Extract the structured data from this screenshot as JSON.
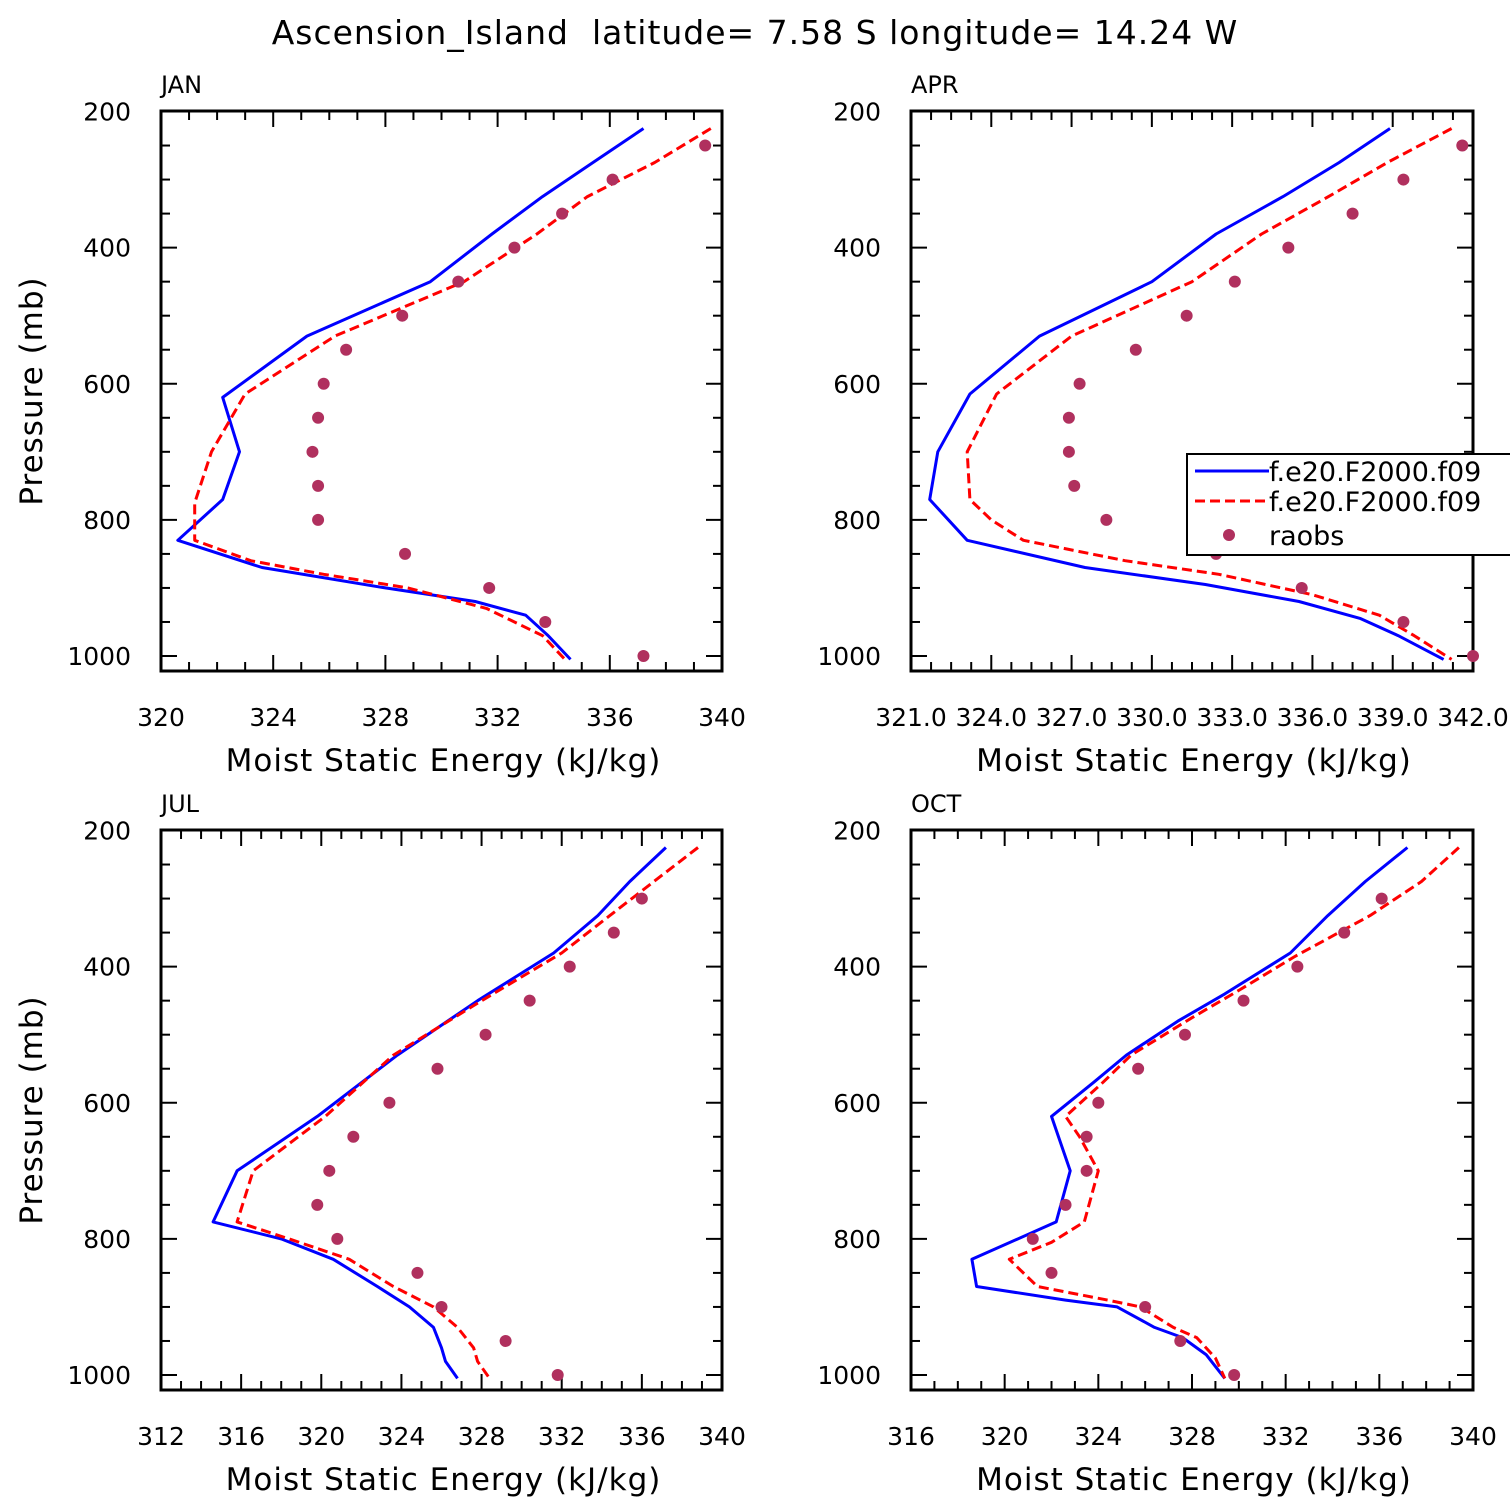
{
  "title": "Ascension_Island  latitude= 7.58 S longitude= 14.24 W",
  "colors": {
    "model1": "#0000ff",
    "model2": "#ff0000",
    "raobs": "#b0305e"
  },
  "legend": {
    "model1": "f.e20.F2000.f09",
    "model2": "f.e20.F2000.f09",
    "obs": "raobs"
  },
  "chart_data": [
    {
      "type": "line",
      "panel": "JAN",
      "xlabel": "Moist Static Energy (kJ/kg)",
      "ylabel": "Pressure (mb)",
      "xlim": [
        320,
        340
      ],
      "xticks": [
        320,
        324,
        328,
        332,
        336,
        340
      ],
      "xtick_labels": [
        "320",
        "324",
        "328",
        "332",
        "336",
        "340"
      ],
      "ylim": [
        1000,
        200
      ],
      "yticks": [
        200,
        400,
        600,
        800,
        1000
      ],
      "series": [
        {
          "name": "f.e20.F2000.f09 (1)",
          "style": "solid",
          "points": [
            [
              337.2,
              225
            ],
            [
              335.4,
              275
            ],
            [
              333.6,
              325
            ],
            [
              331.8,
              380
            ],
            [
              329.6,
              450
            ],
            [
              325.2,
              530
            ],
            [
              322.2,
              620
            ],
            [
              322.8,
              700
            ],
            [
              322.2,
              770
            ],
            [
              320.6,
              830
            ],
            [
              323.6,
              870
            ],
            [
              328.0,
              900
            ],
            [
              331.2,
              920
            ],
            [
              333.0,
              940
            ],
            [
              333.8,
              970
            ],
            [
              334.6,
              1005
            ]
          ]
        },
        {
          "name": "f.e20.F2000.f09 (2)",
          "style": "dashed",
          "points": [
            [
              339.6,
              225
            ],
            [
              337.6,
              275
            ],
            [
              335.2,
              325
            ],
            [
              333.4,
              380
            ],
            [
              330.8,
              450
            ],
            [
              326.2,
              530
            ],
            [
              323.0,
              615
            ],
            [
              321.8,
              700
            ],
            [
              321.2,
              775
            ],
            [
              321.2,
              830
            ],
            [
              323.2,
              860
            ],
            [
              325.8,
              880
            ],
            [
              328.8,
              900
            ],
            [
              331.6,
              930
            ],
            [
              333.6,
              970
            ],
            [
              334.4,
              1005
            ]
          ]
        }
      ],
      "obs": [
        [
          339.4,
          250
        ],
        [
          336.1,
          300
        ],
        [
          334.3,
          350
        ],
        [
          332.6,
          400
        ],
        [
          330.6,
          450
        ],
        [
          328.6,
          500
        ],
        [
          326.6,
          550
        ],
        [
          325.8,
          600
        ],
        [
          325.6,
          650
        ],
        [
          325.4,
          700
        ],
        [
          325.6,
          750
        ],
        [
          325.6,
          800
        ],
        [
          328.7,
          850
        ],
        [
          331.7,
          900
        ],
        [
          333.7,
          950
        ],
        [
          337.2,
          1000
        ]
      ]
    },
    {
      "type": "line",
      "panel": "APR",
      "xlabel": "Moist Static Energy (kJ/kg)",
      "ylabel": "",
      "xlim": [
        321,
        342
      ],
      "xticks": [
        321,
        324,
        327,
        330,
        333,
        336,
        339,
        342
      ],
      "xtick_labels": [
        "321.0",
        "324.0",
        "327.0",
        "330.0",
        "333.0",
        "336.0",
        "339.0",
        "342.0"
      ],
      "ylim": [
        1000,
        200
      ],
      "yticks": [
        200,
        400,
        600,
        800,
        1000
      ],
      "series": [
        {
          "name": "f.e20.F2000.f09 (1)",
          "style": "solid",
          "points": [
            [
              338.9,
              225
            ],
            [
              337.0,
              275
            ],
            [
              334.9,
              325
            ],
            [
              332.4,
              380
            ],
            [
              330.0,
              450
            ],
            [
              325.8,
              530
            ],
            [
              323.2,
              615
            ],
            [
              322.0,
              700
            ],
            [
              321.7,
              770
            ],
            [
              323.1,
              830
            ],
            [
              327.5,
              870
            ],
            [
              332.0,
              895
            ],
            [
              335.5,
              920
            ],
            [
              337.8,
              945
            ],
            [
              339.2,
              970
            ],
            [
              340.9,
              1005
            ]
          ]
        },
        {
          "name": "f.e20.F2000.f09 (2)",
          "style": "dashed",
          "points": [
            [
              341.2,
              225
            ],
            [
              338.8,
              275
            ],
            [
              336.6,
              325
            ],
            [
              334.1,
              380
            ],
            [
              331.5,
              450
            ],
            [
              327.0,
              530
            ],
            [
              324.2,
              615
            ],
            [
              323.1,
              700
            ],
            [
              323.2,
              770
            ],
            [
              324.0,
              800
            ],
            [
              325.2,
              830
            ],
            [
              329.0,
              860
            ],
            [
              332.5,
              880
            ],
            [
              336.0,
              910
            ],
            [
              338.5,
              940
            ],
            [
              339.8,
              970
            ],
            [
              341.2,
              1005
            ]
          ]
        }
      ],
      "obs": [
        [
          341.6,
          250
        ],
        [
          339.4,
          300
        ],
        [
          337.5,
          350
        ],
        [
          335.1,
          400
        ],
        [
          333.1,
          450
        ],
        [
          331.3,
          500
        ],
        [
          329.4,
          550
        ],
        [
          327.3,
          600
        ],
        [
          326.9,
          650
        ],
        [
          326.9,
          700
        ],
        [
          327.1,
          750
        ],
        [
          328.3,
          800
        ],
        [
          332.4,
          850
        ],
        [
          335.6,
          900
        ],
        [
          339.4,
          950
        ],
        [
          342.0,
          1000
        ]
      ]
    },
    {
      "type": "line",
      "panel": "JUL",
      "xlabel": "Moist Static Energy (kJ/kg)",
      "ylabel": "Pressure (mb)",
      "xlim": [
        312,
        340
      ],
      "xticks": [
        312,
        316,
        320,
        324,
        328,
        332,
        336,
        340
      ],
      "xtick_labels": [
        "312",
        "316",
        "320",
        "324",
        "328",
        "332",
        "336",
        "340"
      ],
      "ylim": [
        1000,
        200
      ],
      "yticks": [
        200,
        400,
        600,
        800,
        1000
      ],
      "series": [
        {
          "name": "f.e20.F2000.f09 (1)",
          "style": "solid",
          "points": [
            [
              337.2,
              225
            ],
            [
              335.4,
              275
            ],
            [
              333.8,
              325
            ],
            [
              331.6,
              380
            ],
            [
              327.8,
              450
            ],
            [
              323.8,
              530
            ],
            [
              319.8,
              620
            ],
            [
              315.8,
              700
            ],
            [
              314.6,
              775
            ],
            [
              318.0,
              800
            ],
            [
              320.6,
              830
            ],
            [
              322.8,
              870
            ],
            [
              324.4,
              900
            ],
            [
              325.6,
              930
            ],
            [
              326.0,
              960
            ],
            [
              326.2,
              980
            ],
            [
              326.8,
              1005
            ]
          ]
        },
        {
          "name": "f.e20.F2000.f09 (2)",
          "style": "dashed",
          "points": [
            [
              338.8,
              225
            ],
            [
              336.6,
              275
            ],
            [
              334.4,
              325
            ],
            [
              332.0,
              380
            ],
            [
              328.0,
              450
            ],
            [
              323.6,
              530
            ],
            [
              320.2,
              620
            ],
            [
              316.6,
              700
            ],
            [
              315.8,
              775
            ],
            [
              318.4,
              800
            ],
            [
              321.4,
              830
            ],
            [
              323.6,
              870
            ],
            [
              325.6,
              900
            ],
            [
              326.8,
              930
            ],
            [
              327.6,
              960
            ],
            [
              327.8,
              980
            ],
            [
              328.4,
              1005
            ]
          ]
        }
      ],
      "obs": [
        [
          336.0,
          300
        ],
        [
          334.6,
          350
        ],
        [
          332.4,
          400
        ],
        [
          330.4,
          450
        ],
        [
          328.2,
          500
        ],
        [
          325.8,
          550
        ],
        [
          323.4,
          600
        ],
        [
          321.6,
          650
        ],
        [
          320.4,
          700
        ],
        [
          319.8,
          750
        ],
        [
          320.8,
          800
        ],
        [
          324.8,
          850
        ],
        [
          326.0,
          900
        ],
        [
          329.2,
          950
        ],
        [
          331.8,
          1000
        ]
      ]
    },
    {
      "type": "line",
      "panel": "OCT",
      "xlabel": "Moist Static Energy (kJ/kg)",
      "ylabel": "",
      "xlim": [
        316,
        340
      ],
      "xticks": [
        316,
        320,
        324,
        328,
        332,
        336,
        340
      ],
      "xtick_labels": [
        "316",
        "320",
        "324",
        "328",
        "332",
        "336",
        "340"
      ],
      "ylim": [
        1000,
        200
      ],
      "yticks": [
        200,
        400,
        600,
        800,
        1000
      ],
      "series": [
        {
          "name": "f.e20.F2000.f09 (1)",
          "style": "solid",
          "points": [
            [
              337.2,
              225
            ],
            [
              335.4,
              275
            ],
            [
              333.8,
              325
            ],
            [
              332.2,
              380
            ],
            [
              329.4,
              440
            ],
            [
              327.4,
              480
            ],
            [
              325.2,
              530
            ],
            [
              323.8,
              570
            ],
            [
              322.0,
              620
            ],
            [
              322.8,
              700
            ],
            [
              322.2,
              775
            ],
            [
              318.6,
              830
            ],
            [
              318.8,
              870
            ],
            [
              322.6,
              890
            ],
            [
              324.8,
              900
            ],
            [
              326.4,
              930
            ],
            [
              327.6,
              945
            ],
            [
              328.6,
              970
            ],
            [
              329.4,
              1005
            ]
          ]
        },
        {
          "name": "f.e20.F2000.f09 (2)",
          "style": "dashed",
          "points": [
            [
              339.4,
              225
            ],
            [
              337.8,
              275
            ],
            [
              335.6,
              325
            ],
            [
              332.4,
              385
            ],
            [
              330.0,
              435
            ],
            [
              328.0,
              475
            ],
            [
              325.4,
              530
            ],
            [
              324.2,
              570
            ],
            [
              322.6,
              620
            ],
            [
              323.2,
              650
            ],
            [
              324.0,
              700
            ],
            [
              323.4,
              775
            ],
            [
              322.0,
              805
            ],
            [
              320.2,
              830
            ],
            [
              321.4,
              870
            ],
            [
              324.4,
              890
            ],
            [
              325.8,
              900
            ],
            [
              327.2,
              930
            ],
            [
              328.2,
              945
            ],
            [
              329.0,
              975
            ],
            [
              329.4,
              1005
            ]
          ]
        }
      ],
      "obs": [
        [
          336.1,
          300
        ],
        [
          334.5,
          350
        ],
        [
          332.5,
          400
        ],
        [
          330.2,
          450
        ],
        [
          327.7,
          500
        ],
        [
          325.7,
          550
        ],
        [
          324.0,
          600
        ],
        [
          323.5,
          650
        ],
        [
          323.5,
          700
        ],
        [
          322.6,
          750
        ],
        [
          321.2,
          800
        ],
        [
          322.0,
          850
        ],
        [
          326.0,
          900
        ],
        [
          327.5,
          950
        ],
        [
          329.8,
          1000
        ]
      ]
    }
  ]
}
